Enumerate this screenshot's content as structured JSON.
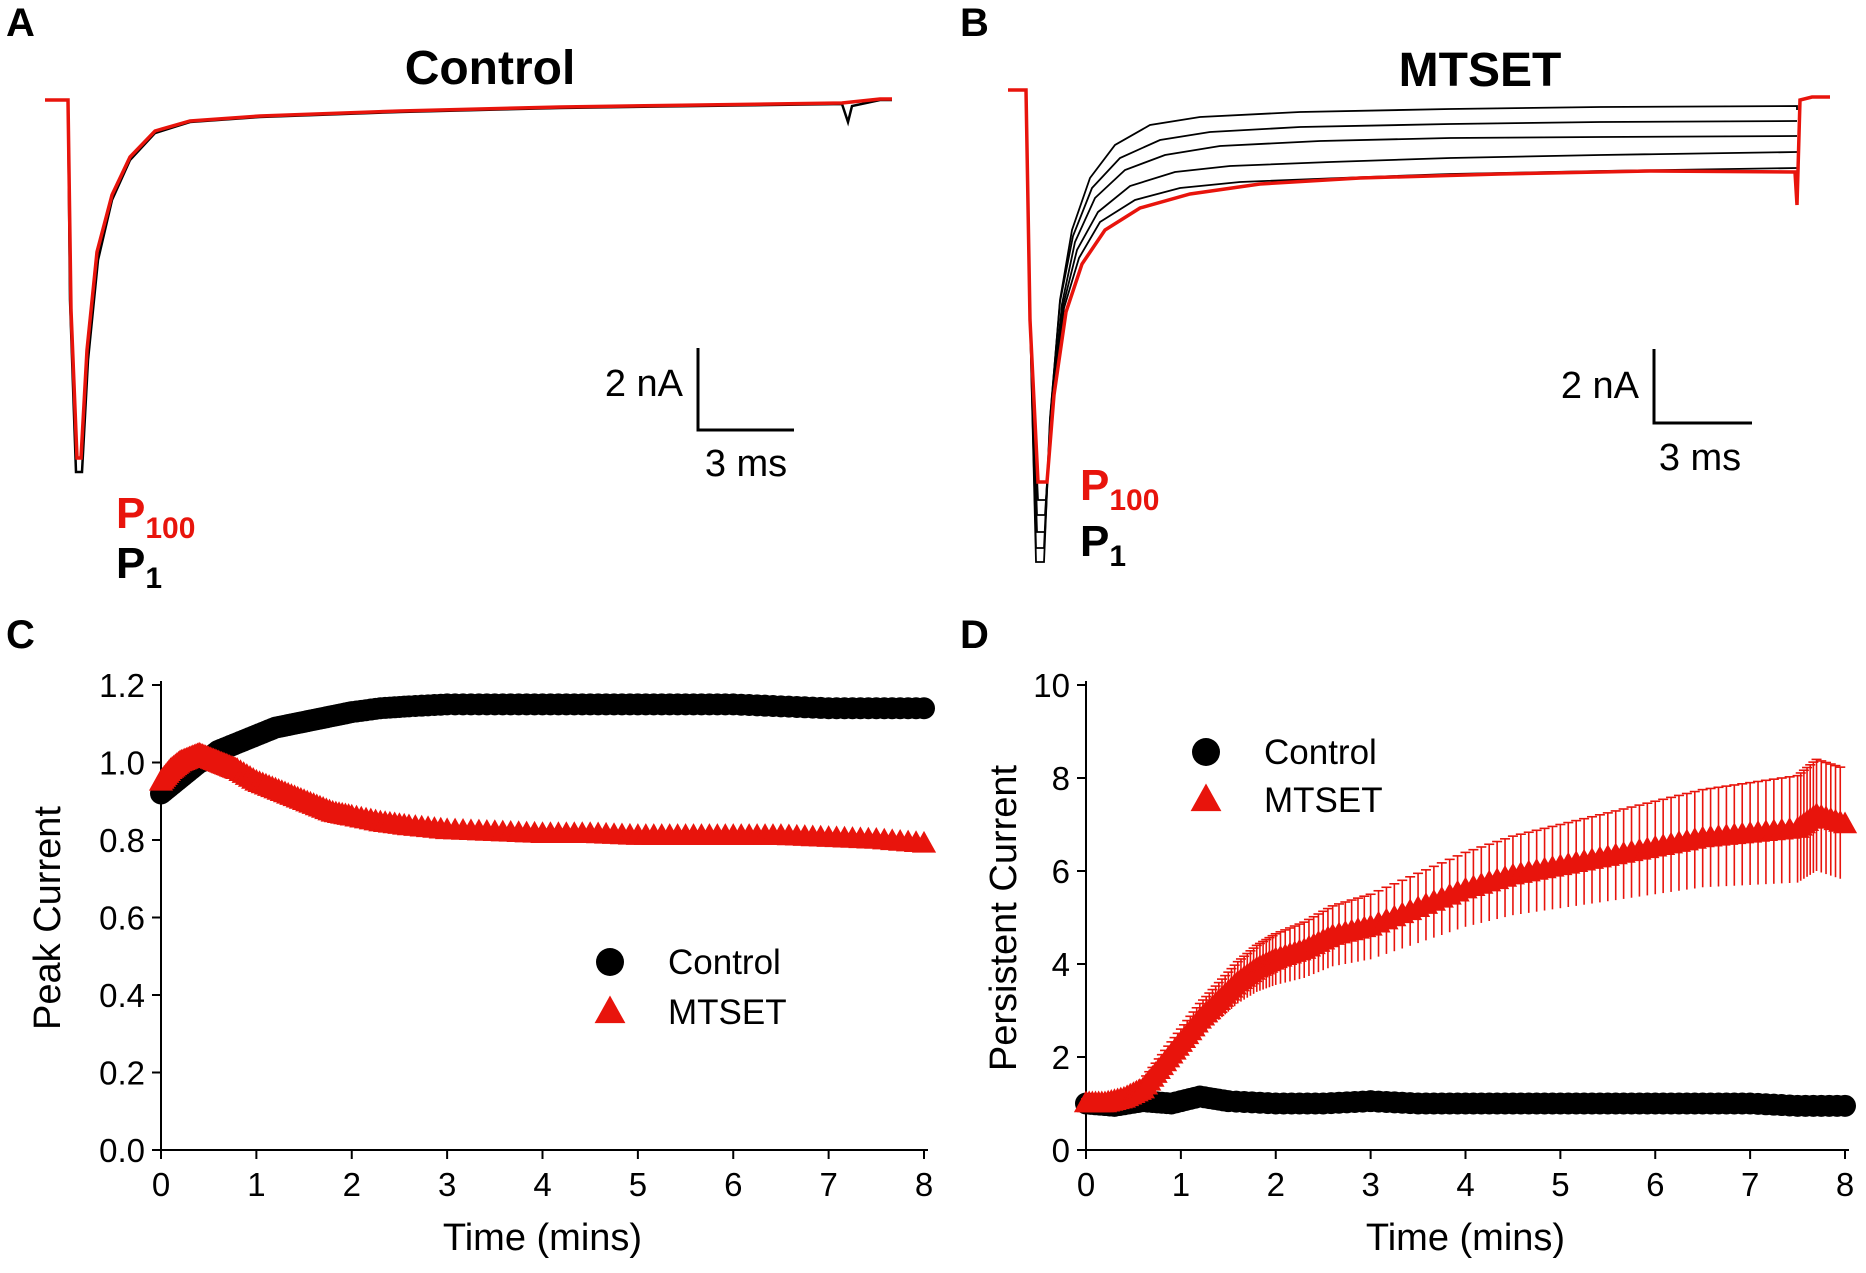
{
  "colors": {
    "control": "#000000",
    "mtset": "#e8140c"
  },
  "panels": {
    "A": {
      "label": "A",
      "title": "Control",
      "scale_y": "2 nA",
      "scale_x": "3 ms",
      "p100": {
        "base": "P",
        "sub": "100"
      },
      "p1": {
        "base": "P",
        "sub": "1"
      }
    },
    "B": {
      "label": "B",
      "title": "MTSET",
      "scale_y": "2 nA",
      "scale_x": "3 ms",
      "p100": {
        "base": "P",
        "sub": "100"
      },
      "p1": {
        "base": "P",
        "sub": "1"
      }
    },
    "C": {
      "label": "C"
    },
    "D": {
      "label": "D"
    }
  },
  "chart_data": [
    {
      "id": "C",
      "type": "scatter",
      "xlabel": "Time (mins)",
      "ylabel": "Peak Current",
      "xlim": [
        0,
        8
      ],
      "ylim": [
        0,
        1.2
      ],
      "xticks": [
        "0",
        "1",
        "2",
        "3",
        "4",
        "5",
        "6",
        "7",
        "8"
      ],
      "yticks": [
        "0.0",
        "0.2",
        "0.4",
        "0.6",
        "0.8",
        "1.0",
        "1.2"
      ],
      "legend_position": "center-right",
      "series": [
        {
          "name": "Control",
          "marker": "circle",
          "x": [
            0,
            0.1,
            0.2,
            0.3,
            0.4,
            0.5,
            0.6,
            0.8,
            1,
            1.2,
            1.4,
            1.6,
            1.8,
            2,
            2.3,
            2.6,
            3,
            3.5,
            4,
            4.5,
            5,
            5.5,
            6,
            6.5,
            7,
            7.5,
            8
          ],
          "y": [
            0.92,
            0.94,
            0.96,
            0.98,
            1.0,
            1.01,
            1.03,
            1.05,
            1.07,
            1.09,
            1.1,
            1.11,
            1.12,
            1.13,
            1.14,
            1.145,
            1.15,
            1.15,
            1.15,
            1.15,
            1.15,
            1.15,
            1.15,
            1.145,
            1.14,
            1.14,
            1.14
          ]
        },
        {
          "name": "MTSET",
          "marker": "triangle",
          "x": [
            0,
            0.1,
            0.2,
            0.3,
            0.4,
            0.5,
            0.6,
            0.7,
            0.8,
            1,
            1.2,
            1.4,
            1.6,
            1.8,
            2,
            2.3,
            2.6,
            3,
            3.5,
            4,
            4.5,
            5,
            5.5,
            6,
            6.5,
            7,
            7.5,
            8
          ],
          "y": [
            0.95,
            0.98,
            1.0,
            1.01,
            1.02,
            1.01,
            1.0,
            0.99,
            0.98,
            0.95,
            0.93,
            0.91,
            0.89,
            0.87,
            0.86,
            0.845,
            0.835,
            0.825,
            0.82,
            0.815,
            0.815,
            0.81,
            0.81,
            0.81,
            0.81,
            0.805,
            0.8,
            0.79
          ]
        }
      ]
    },
    {
      "id": "D",
      "type": "scatter",
      "xlabel": "Time (mins)",
      "ylabel": "Persistent Current",
      "xlim": [
        0,
        8
      ],
      "ylim": [
        0,
        10
      ],
      "xticks": [
        "0",
        "1",
        "2",
        "3",
        "4",
        "5",
        "6",
        "7",
        "8"
      ],
      "yticks": [
        "0",
        "2",
        "4",
        "6",
        "8",
        "10"
      ],
      "legend_position": "top-left",
      "series": [
        {
          "name": "Control",
          "marker": "circle",
          "x": [
            0,
            0.3,
            0.6,
            0.9,
            1.2,
            1.5,
            2,
            2.5,
            3,
            3.5,
            4,
            4.5,
            5,
            5.5,
            6,
            6.5,
            7,
            7.5,
            8
          ],
          "y": [
            1.0,
            0.95,
            1.05,
            1.0,
            1.15,
            1.05,
            1.0,
            1.0,
            1.05,
            1.0,
            1.0,
            1.0,
            1.0,
            1.0,
            1.0,
            1.0,
            1.0,
            0.95,
            0.95
          ]
        },
        {
          "name": "MTSET",
          "marker": "triangle",
          "x": [
            0,
            0.2,
            0.4,
            0.6,
            0.8,
            1.0,
            1.2,
            1.4,
            1.6,
            1.8,
            2.0,
            2.3,
            2.6,
            3.0,
            3.5,
            4.0,
            4.5,
            5.0,
            5.5,
            6.0,
            6.5,
            7.0,
            7.5,
            7.7,
            8.0
          ],
          "y": [
            1.0,
            1.0,
            1.1,
            1.3,
            1.8,
            2.3,
            2.8,
            3.2,
            3.6,
            3.9,
            4.1,
            4.3,
            4.6,
            4.8,
            5.2,
            5.6,
            5.9,
            6.1,
            6.3,
            6.5,
            6.7,
            6.8,
            6.9,
            7.2,
            7.0
          ],
          "error": [
            0.1,
            0.1,
            0.15,
            0.2,
            0.25,
            0.3,
            0.35,
            0.4,
            0.45,
            0.5,
            0.55,
            0.6,
            0.65,
            0.7,
            0.75,
            0.8,
            0.85,
            0.9,
            0.95,
            1.0,
            1.05,
            1.1,
            1.15,
            1.2,
            1.2
          ]
        }
      ]
    }
  ]
}
